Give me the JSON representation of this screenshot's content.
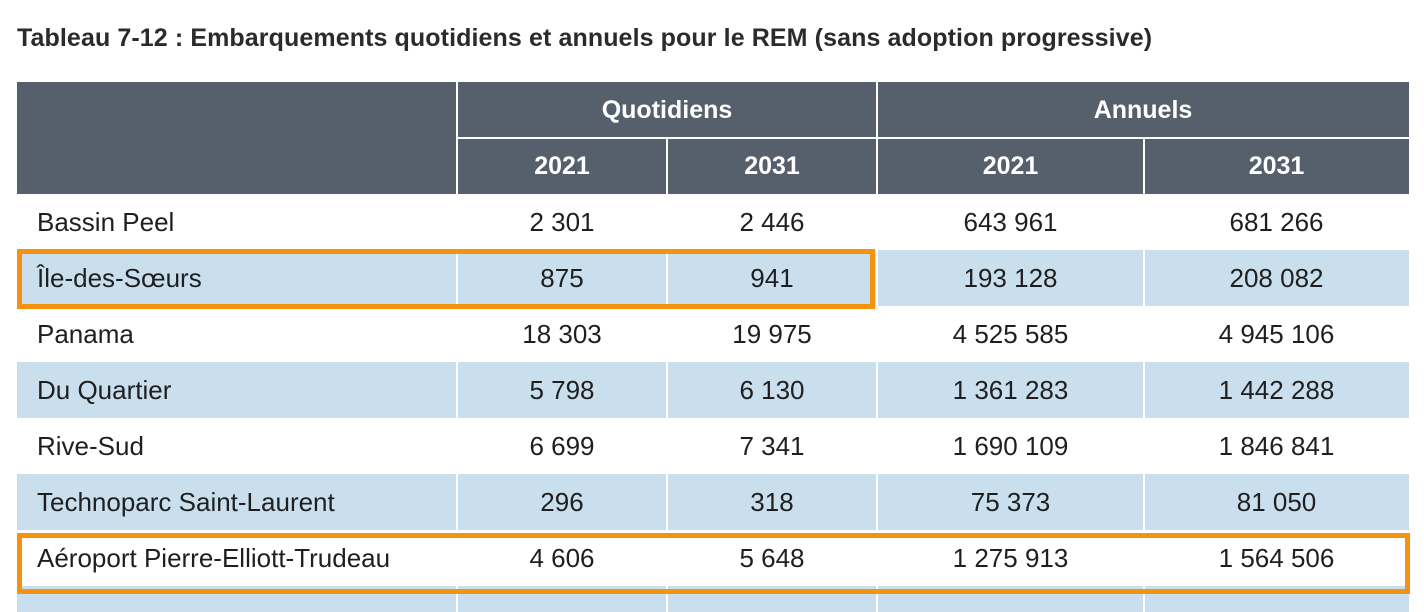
{
  "caption": "Tableau 7-12 : Embarquements quotidiens et annuels pour le REM (sans adoption progressive)",
  "header": {
    "group_daily": "Quotidiens",
    "group_annual": "Annuels",
    "years": [
      "2021",
      "2031",
      "2021",
      "2031"
    ]
  },
  "rows": [
    {
      "name": "Bassin Peel",
      "d2021": "2 301",
      "d2031": "2 446",
      "a2021": "643 961",
      "a2031": "681 266"
    },
    {
      "name": "Île-des-Sœurs",
      "d2021": "875",
      "d2031": "941",
      "a2021": "193 128",
      "a2031": "208 082"
    },
    {
      "name": "Panama",
      "d2021": "18 303",
      "d2031": "19 975",
      "a2021": "4 525 585",
      "a2031": "4 945 106"
    },
    {
      "name": "Du Quartier",
      "d2021": "5 798",
      "d2031": "6 130",
      "a2021": "1 361 283",
      "a2031": "1 442 288"
    },
    {
      "name": "Rive-Sud",
      "d2021": "6 699",
      "d2031": "7 341",
      "a2021": "1 690 109",
      "a2031": "1 846 841"
    },
    {
      "name": "Technoparc Saint-Laurent",
      "d2021": "296",
      "d2031": "318",
      "a2021": "75 373",
      "a2031": "81 050"
    },
    {
      "name": "Aéroport Pierre-Elliott-Trudeau",
      "d2021": "4 606",
      "d2031": "5 648",
      "a2021": "1 275 913",
      "a2031": "1 564 506"
    }
  ],
  "highlighted_rows": [
    "Île-des-Sœurs",
    "Aéroport Pierre-Elliott-Trudeau"
  ],
  "colors": {
    "header_bg": "#56606d",
    "band_bg": "#c9dfee",
    "highlight": "#f5920f"
  }
}
